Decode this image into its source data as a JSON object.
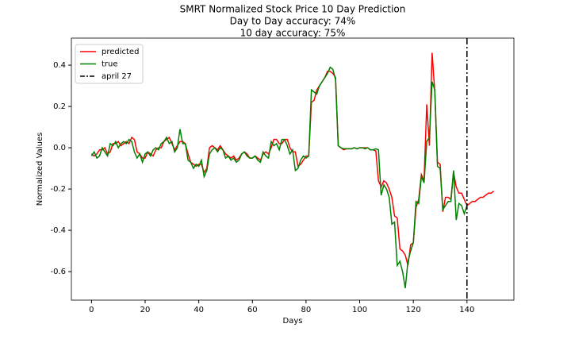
{
  "chart_data": {
    "type": "line",
    "title": [
      "SMRT Normalized Stock Price 10 Day Prediction",
      "Day to Day accuracy: 74%",
      "10 day accuracy: 75%"
    ],
    "xlabel": "Days",
    "ylabel": "Normalized Values",
    "x": [
      0,
      1,
      2,
      3,
      4,
      5,
      6,
      7,
      8,
      9,
      10,
      11,
      12,
      13,
      14,
      15,
      16,
      17,
      18,
      19,
      20,
      21,
      22,
      23,
      24,
      25,
      26,
      27,
      28,
      29,
      30,
      31,
      32,
      33,
      34,
      35,
      36,
      37,
      38,
      39,
      40,
      41,
      42,
      43,
      44,
      45,
      46,
      47,
      48,
      49,
      50,
      51,
      52,
      53,
      54,
      55,
      56,
      57,
      58,
      59,
      60,
      61,
      62,
      63,
      64,
      65,
      66,
      67,
      68,
      69,
      70,
      71,
      72,
      73,
      74,
      75,
      76,
      77,
      78,
      79,
      80,
      81,
      82,
      83,
      84,
      85,
      86,
      87,
      88,
      89,
      90,
      91,
      92,
      93,
      94,
      95,
      96,
      97,
      98,
      99,
      100,
      101,
      102,
      103,
      104,
      105,
      106,
      107,
      108,
      109,
      110,
      111,
      112,
      113,
      114,
      115,
      116,
      117,
      118,
      119,
      120,
      121,
      122,
      123,
      124,
      125,
      126,
      127,
      128,
      129,
      130,
      131,
      132,
      133,
      134,
      135,
      136,
      137,
      138,
      139,
      140,
      141,
      142,
      143,
      144,
      145,
      146,
      147,
      148,
      149,
      150
    ],
    "series": [
      {
        "name": "predicted",
        "color": "#ff0000",
        "values": [
          -0.03,
          -0.04,
          -0.03,
          -0.01,
          -0.01,
          0.0,
          -0.03,
          -0.02,
          0.02,
          0.02,
          0.03,
          0.01,
          0.02,
          0.03,
          0.02,
          0.05,
          0.04,
          -0.02,
          -0.03,
          -0.05,
          -0.05,
          -0.02,
          -0.03,
          -0.04,
          -0.01,
          0.0,
          0.0,
          0.03,
          0.04,
          0.05,
          0.02,
          -0.01,
          0.01,
          0.03,
          0.03,
          0.02,
          -0.03,
          -0.07,
          -0.08,
          -0.09,
          -0.08,
          -0.08,
          -0.12,
          -0.1,
          0.0,
          0.01,
          0.0,
          -0.01,
          0.01,
          -0.01,
          -0.03,
          -0.04,
          -0.05,
          -0.04,
          -0.06,
          -0.05,
          -0.03,
          -0.02,
          -0.03,
          -0.05,
          -0.05,
          -0.04,
          -0.05,
          -0.06,
          -0.03,
          -0.02,
          -0.03,
          0.0,
          0.04,
          0.04,
          0.02,
          0.02,
          0.04,
          0.04,
          0.0,
          -0.02,
          -0.02,
          -0.09,
          -0.08,
          -0.06,
          -0.04,
          -0.04,
          0.22,
          0.23,
          0.28,
          0.3,
          0.32,
          0.34,
          0.37,
          0.37,
          0.36,
          0.34,
          0.01,
          0.0,
          -0.01,
          -0.005,
          -0.005,
          -0.005,
          0.0,
          -0.005,
          0.0,
          0.0,
          0.0,
          0.0,
          -0.01,
          -0.01,
          -0.015,
          -0.16,
          -0.19,
          -0.16,
          -0.17,
          -0.2,
          -0.24,
          -0.33,
          -0.34,
          -0.49,
          -0.5,
          -0.52,
          -0.57,
          -0.47,
          -0.46,
          -0.29,
          -0.25,
          -0.13,
          -0.16,
          0.21,
          0.01,
          0.46,
          0.27,
          -0.07,
          -0.08,
          -0.31,
          -0.24,
          -0.24,
          -0.25,
          -0.12,
          -0.19,
          -0.22,
          -0.22,
          -0.25,
          -0.28,
          -0.27,
          -0.26,
          -0.26,
          -0.25,
          -0.24,
          -0.24,
          -0.23,
          -0.22,
          -0.22,
          -0.21
        ]
      },
      {
        "name": "true",
        "color": "#008000",
        "values": [
          -0.04,
          -0.02,
          -0.05,
          -0.04,
          0.0,
          -0.02,
          -0.04,
          0.02,
          0.01,
          0.03,
          0.0,
          0.02,
          0.03,
          0.02,
          0.04,
          0.03,
          -0.02,
          -0.05,
          -0.03,
          -0.07,
          -0.03,
          -0.02,
          -0.04,
          -0.01,
          0.0,
          -0.01,
          0.02,
          0.03,
          0.05,
          0.02,
          0.03,
          -0.02,
          0.0,
          0.09,
          0.02,
          0.02,
          -0.06,
          -0.07,
          -0.1,
          -0.08,
          -0.09,
          -0.06,
          -0.14,
          -0.11,
          -0.03,
          -0.01,
          0.0,
          -0.02,
          0.0,
          -0.01,
          -0.05,
          -0.04,
          -0.06,
          -0.05,
          -0.07,
          -0.06,
          -0.03,
          -0.02,
          -0.04,
          -0.05,
          -0.05,
          -0.04,
          -0.06,
          -0.07,
          -0.02,
          -0.04,
          -0.05,
          0.03,
          0.01,
          0.02,
          -0.01,
          0.04,
          0.04,
          0.01,
          -0.03,
          -0.01,
          -0.11,
          -0.1,
          -0.06,
          -0.04,
          -0.05,
          -0.04,
          0.28,
          0.27,
          0.26,
          0.3,
          0.32,
          0.34,
          0.36,
          0.39,
          0.38,
          0.33,
          0.01,
          0.0,
          -0.005,
          -0.005,
          -0.005,
          -0.005,
          0.0,
          -0.005,
          0.0,
          0.0,
          -0.005,
          0.0,
          -0.01,
          -0.01,
          -0.005,
          -0.01,
          -0.23,
          -0.18,
          -0.2,
          -0.24,
          -0.37,
          -0.36,
          -0.57,
          -0.55,
          -0.6,
          -0.68,
          -0.55,
          -0.5,
          -0.46,
          -0.26,
          -0.27,
          -0.14,
          -0.17,
          0.03,
          0.05,
          0.32,
          0.28,
          -0.09,
          -0.1,
          -0.3,
          -0.28,
          -0.26,
          -0.26,
          -0.11,
          -0.35,
          -0.27,
          -0.28,
          -0.32,
          -0.28,
          null,
          null,
          null,
          null,
          null,
          null,
          null,
          null,
          null,
          null
        ]
      }
    ],
    "vline": {
      "name": "april 27",
      "x": 140,
      "color": "#000000"
    },
    "xlim": [
      -7.5,
      157.5
    ],
    "xticks": [
      0,
      20,
      40,
      60,
      80,
      100,
      120,
      140
    ],
    "ylim": [
      -0.738,
      0.531
    ],
    "yticks": [
      -0.6,
      -0.4,
      -0.2,
      {
        "value": 0,
        "label": "0.0"
      },
      0.2,
      0.4
    ],
    "legend": "upper left"
  }
}
